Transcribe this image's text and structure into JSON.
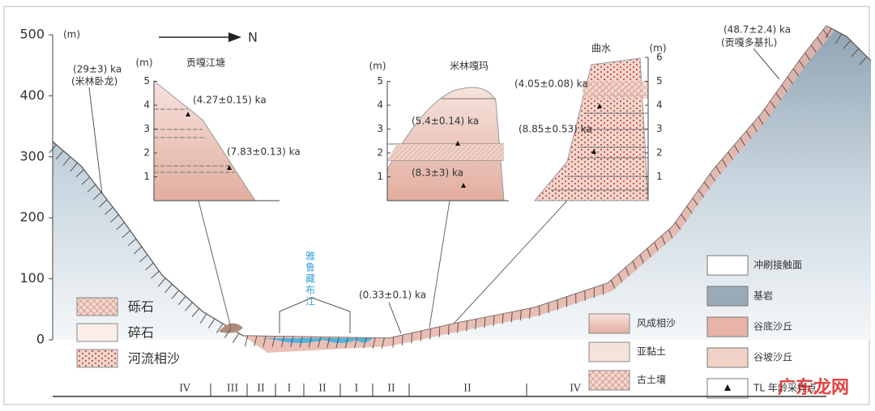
{
  "main_axis": {
    "unit": "(m)",
    "ticks": [
      500,
      400,
      300,
      200,
      100,
      0
    ]
  },
  "north_label": "N",
  "river_label": "雅鲁藏布江",
  "site_labels": [
    {
      "age": "(29±3) ka",
      "place": "(米林卧龙)"
    },
    {
      "age": "(48.7±2.4) ka",
      "place": "(贡嘎多基扎)"
    },
    {
      "age": "(0.33±0.1) ka"
    }
  ],
  "insets": [
    {
      "title": "贡嘎江塘",
      "unit": "(m)",
      "ticks": [
        1,
        2,
        3,
        4,
        5
      ],
      "ages": [
        "(4.27±0.15) ka",
        "(7.83±0.13) ka"
      ]
    },
    {
      "title": "米林嘎玛",
      "unit": "(m)",
      "ticks": [
        1,
        2,
        3,
        4,
        5
      ],
      "ages": [
        "(5.4±0.14) ka",
        "(8.3±3) ka"
      ]
    },
    {
      "title": "曲水",
      "unit": "(m)",
      "ticks": [
        1,
        2,
        3,
        4,
        5,
        6
      ],
      "ages": [
        "(4.05±0.08) ka",
        "(8.85±0.53) ka"
      ]
    }
  ],
  "legend_left": [
    "砾石",
    "碎石",
    "河流相沙"
  ],
  "legend_mid": [
    "风成相沙",
    "亚黏土",
    "古土壤"
  ],
  "legend_right": [
    "冲刷接触面",
    "基岩",
    "谷底沙丘",
    "谷坡沙丘",
    "TL 年龄采样点"
  ],
  "terraces": [
    "IV",
    "III",
    "II",
    "I",
    "II",
    "I",
    "II",
    "II",
    "IV"
  ],
  "watermark": "广东龙网"
}
